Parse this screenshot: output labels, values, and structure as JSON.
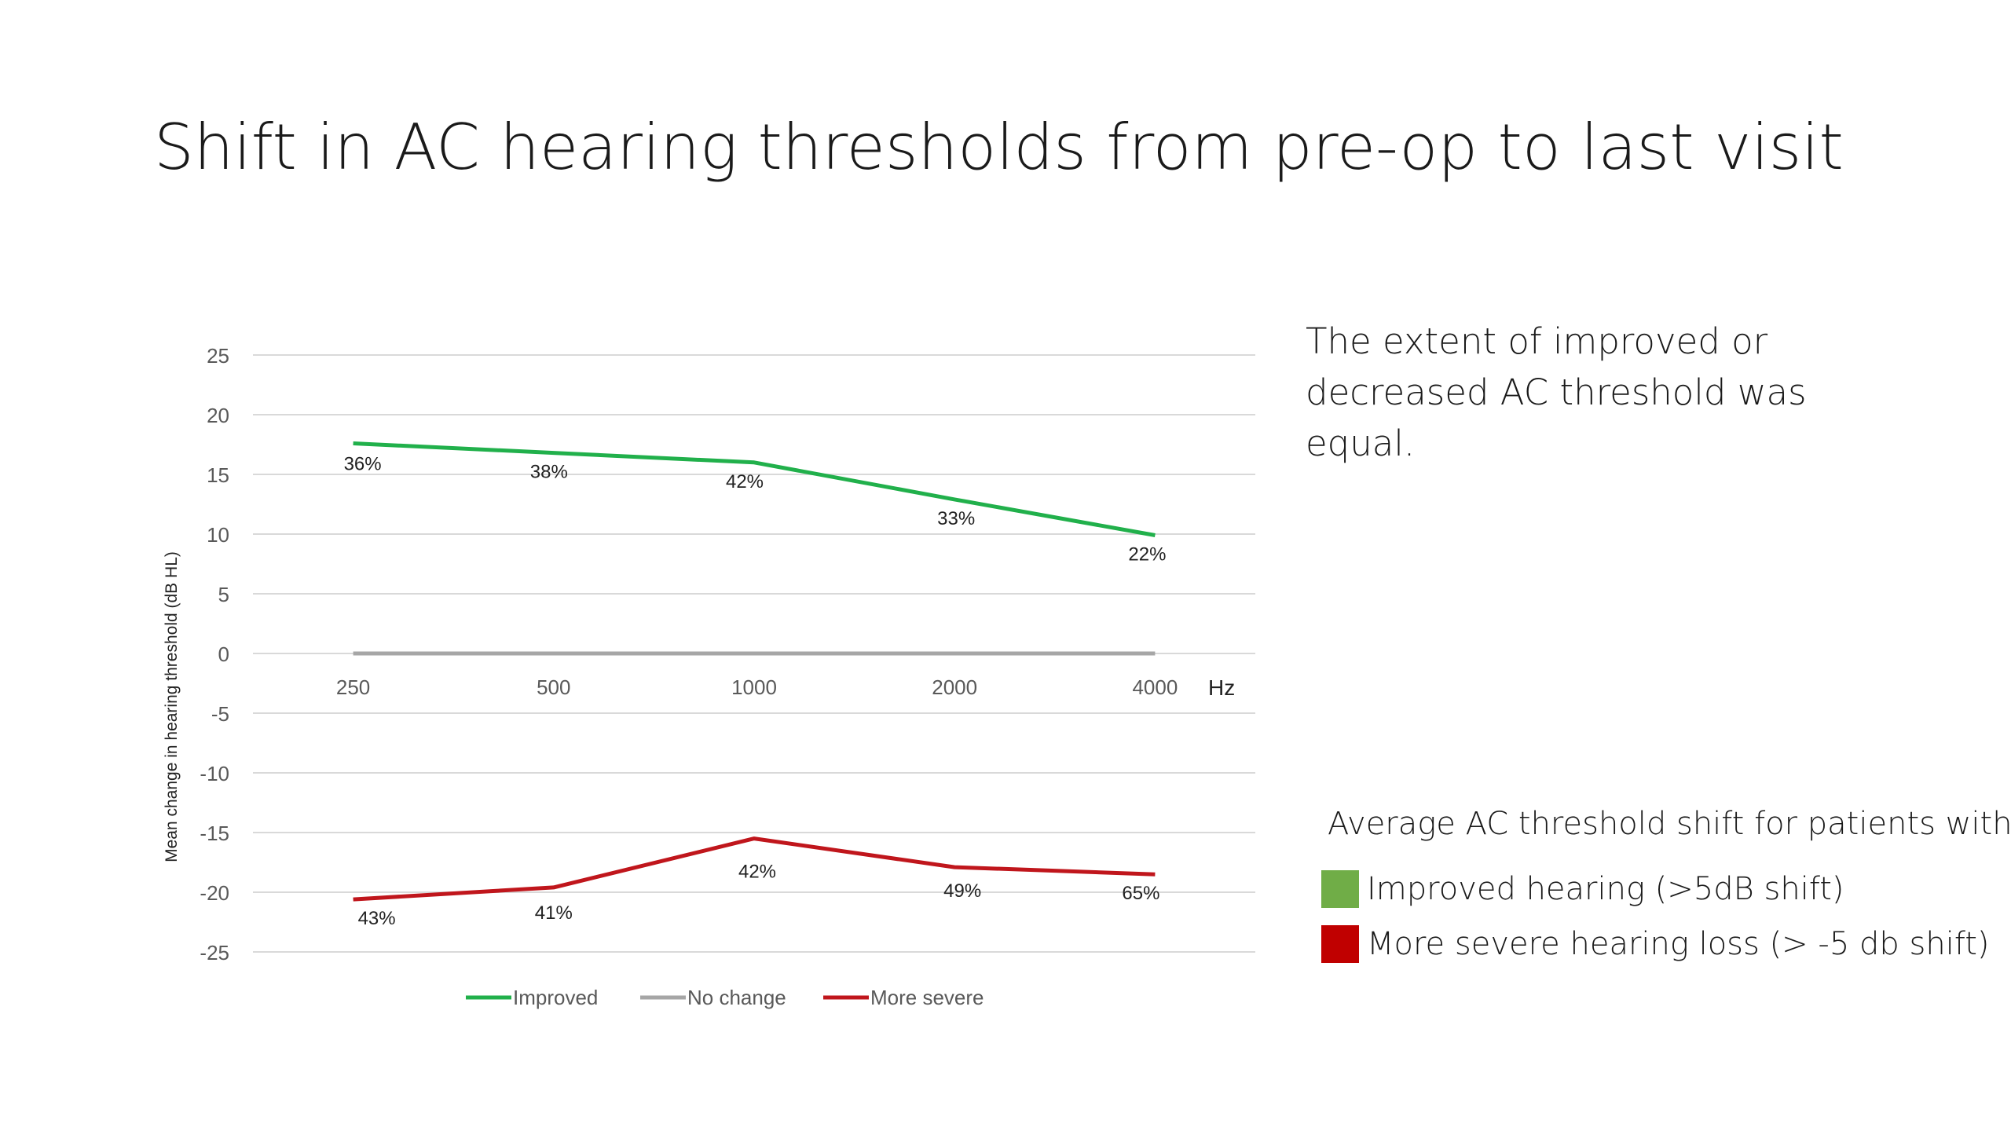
{
  "title": "Shift in AC hearing thresholds from pre-op to last visit",
  "note": "The extent of improved or decreased AC threshold was equal.",
  "shift_legend": {
    "title": "Average AC threshold shift for patients with:",
    "items": [
      {
        "label": "Improved hearing (>5dB shift)",
        "color": "#70ad47"
      },
      {
        "label": "More severe hearing loss (> -5 db shift)",
        "color": "#c00000"
      }
    ]
  },
  "chart_data": {
    "type": "line",
    "categories": [
      "250",
      "500",
      "1000",
      "2000",
      "4000"
    ],
    "x_unit_label": "Hz",
    "ylabel": "Mean change in hearing threshold (dB HL)",
    "ylim": [
      -25,
      25
    ],
    "yticks": [
      25,
      20,
      15,
      10,
      5,
      0,
      -5,
      -10,
      -15,
      -20,
      -25
    ],
    "grid": true,
    "legend_position": "bottom",
    "series": [
      {
        "name": "Improved",
        "color": "#21b04b",
        "values": [
          17.6,
          16.8,
          16.0,
          12.9,
          9.9
        ],
        "data_labels": [
          "36%",
          "38%",
          "42%",
          "33%",
          "22%"
        ]
      },
      {
        "name": "No change",
        "color": "#a6a6a6",
        "values": [
          0,
          0,
          0,
          0,
          0
        ],
        "data_labels": []
      },
      {
        "name": "More severe",
        "color": "#c0161c",
        "values": [
          -20.6,
          -19.6,
          -15.5,
          -17.9,
          -18.5
        ],
        "data_labels": [
          "43%",
          "41%",
          "42%",
          "49%",
          "65%"
        ]
      }
    ]
  }
}
